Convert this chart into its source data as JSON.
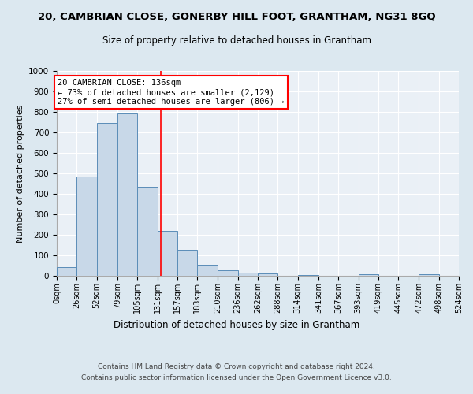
{
  "title": "20, CAMBRIAN CLOSE, GONERBY HILL FOOT, GRANTHAM, NG31 8GQ",
  "subtitle": "Size of property relative to detached houses in Grantham",
  "xlabel": "Distribution of detached houses by size in Grantham",
  "ylabel": "Number of detached properties",
  "bin_edges": [
    0,
    26,
    52,
    79,
    105,
    131,
    157,
    183,
    210,
    236,
    262,
    288,
    314,
    341,
    367,
    393,
    419,
    445,
    472,
    498,
    524
  ],
  "bar_heights": [
    42,
    485,
    748,
    792,
    435,
    220,
    127,
    52,
    28,
    15,
    10,
    0,
    5,
    0,
    0,
    8,
    0,
    0,
    8,
    0
  ],
  "bar_color": "#c8d8e8",
  "bar_edge_color": "#5b8db8",
  "vline_x": 136,
  "vline_color": "red",
  "annotation_title": "20 CAMBRIAN CLOSE: 136sqm",
  "annotation_line1": "← 73% of detached houses are smaller (2,129)",
  "annotation_line2": "27% of semi-detached houses are larger (806) →",
  "ylim": [
    0,
    1000
  ],
  "yticks": [
    0,
    100,
    200,
    300,
    400,
    500,
    600,
    700,
    800,
    900,
    1000
  ],
  "tick_labels": [
    "0sqm",
    "26sqm",
    "52sqm",
    "79sqm",
    "105sqm",
    "131sqm",
    "157sqm",
    "183sqm",
    "210sqm",
    "236sqm",
    "262sqm",
    "288sqm",
    "314sqm",
    "341sqm",
    "367sqm",
    "393sqm",
    "419sqm",
    "445sqm",
    "472sqm",
    "498sqm",
    "524sqm"
  ],
  "footer1": "Contains HM Land Registry data © Crown copyright and database right 2024.",
  "footer2": "Contains public sector information licensed under the Open Government Licence v3.0.",
  "bg_color": "#dce8f0",
  "plot_bg_color": "#eaf0f6"
}
